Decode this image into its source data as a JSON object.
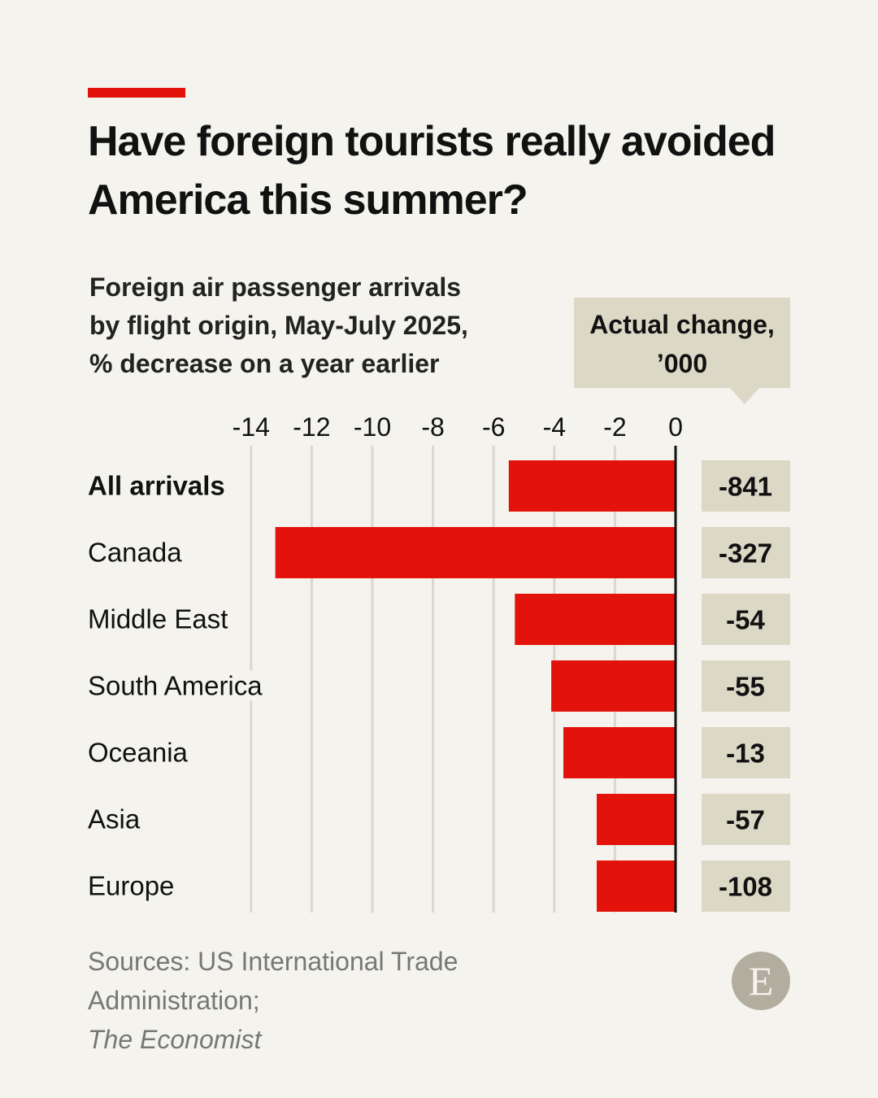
{
  "header": {
    "title": "Have foreign tourists really avoided America this summer?"
  },
  "subtitle_lines": [
    "Foreign air passenger arrivals",
    "by flight origin, May-July 2025,",
    "% decrease on a year earlier"
  ],
  "callout": {
    "line1": "Actual change,",
    "line2": "’000"
  },
  "chart_data": {
    "type": "bar",
    "orientation": "horizontal",
    "categories": [
      "All arrivals",
      "Canada",
      "Middle East",
      "South America",
      "Oceania",
      "Asia",
      "Europe"
    ],
    "values": [
      -5.5,
      -13.2,
      -5.3,
      -4.1,
      -3.7,
      -2.6,
      -2.6
    ],
    "actual_change_thousands": [
      "-841",
      "-327",
      "-54",
      "-55",
      "-13",
      "-57",
      "-108"
    ],
    "xlim": [
      -14,
      0
    ],
    "xticks": [
      -14,
      -12,
      -10,
      -8,
      -6,
      -4,
      -2,
      0
    ],
    "grid": true,
    "bar_color": "#e3120b",
    "label_box_color": "#dcd8c6"
  },
  "sources": {
    "line1": "Sources: US International Trade",
    "line2_prefix": "Administration; ",
    "line2_italic": "The Economist"
  },
  "logo": {
    "letter": "E"
  }
}
